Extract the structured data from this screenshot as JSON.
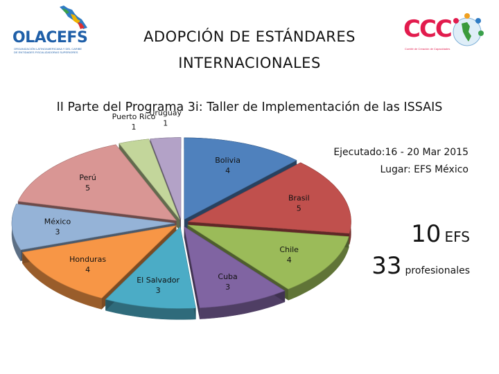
{
  "header": {
    "title_line1": "ADOPCIÓN DE ESTÁNDARES",
    "title_line2": "INTERNACIONALES",
    "left_logo": {
      "name": "OLACEFS",
      "tagline": "ORGANIZACIÓN LATINOAMERICANA Y DEL CARIBE DE ENTIDADES FISCALIZADORAS SUPERIORES",
      "icon": "americas-map-icon"
    },
    "right_logo": {
      "name": "CCC",
      "tagline": "Comité de Creación de Capacidades",
      "icon": "globe-people-icon"
    }
  },
  "subtitle": "II Parte del Programa 3i: Taller de Implementación de las ISSAIS",
  "info": {
    "executed": "Ejecutado:16 - 20 Mar 2015",
    "place": "Lugar: EFS México",
    "efs_count": "10",
    "efs_unit": "EFS",
    "prof_count": "33",
    "prof_unit": "profesionales"
  },
  "chart_data": {
    "type": "pie",
    "style": "3d-exploded",
    "title": "",
    "slices": [
      {
        "label": "Bolivia",
        "value": 4,
        "color": "#4f81bd"
      },
      {
        "label": "Brasil",
        "value": 5,
        "color": "#c0504d"
      },
      {
        "label": "Chile",
        "value": 4,
        "color": "#9bbb59"
      },
      {
        "label": "Cuba",
        "value": 3,
        "color": "#8064a2"
      },
      {
        "label": "El Salvador",
        "value": 3,
        "color": "#4bacc6"
      },
      {
        "label": "Honduras",
        "value": 4,
        "color": "#f79646"
      },
      {
        "label": "México",
        "value": 3,
        "color": "#95b3d7"
      },
      {
        "label": "Perú",
        "value": 5,
        "color": "#d99694"
      },
      {
        "label": "Puerto Rico",
        "value": 1,
        "color": "#c3d69b"
      },
      {
        "label": "Uruguay",
        "value": 1,
        "color": "#b3a2c7"
      }
    ]
  }
}
